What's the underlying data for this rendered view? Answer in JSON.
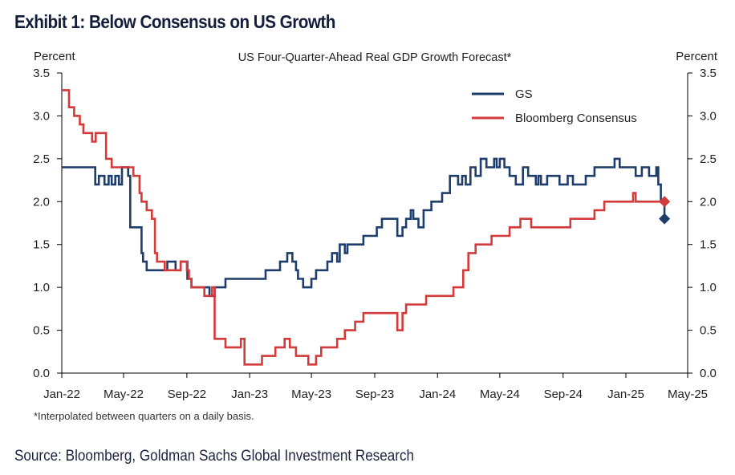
{
  "exhibit_title": "Exhibit 1: Below Consensus on US Growth",
  "footnote": "*Interpolated between quarters on a daily basis.",
  "source": "Source: Bloomberg, Goldman Sachs Global Investment Research",
  "colors": {
    "gs": "#1f3d6b",
    "consensus": "#d43a3a",
    "axis": "#000000",
    "title_text": "#141d3a"
  },
  "chart_data": {
    "type": "line",
    "title": "US Four-Quarter-Ahead Real GDP Growth Forecast*",
    "ylabel_left": "Percent",
    "ylabel_right": "Percent",
    "ylim": [
      0,
      3.5
    ],
    "yticks": [
      "0.0",
      "0.5",
      "1.0",
      "1.5",
      "2.0",
      "2.5",
      "3.0",
      "3.5"
    ],
    "xlim": [
      "2022-01-01",
      "2025-05-01"
    ],
    "xticks": [
      {
        "date": "2022-01-01",
        "label": "Jan-22"
      },
      {
        "date": "2022-05-01",
        "label": "May-22"
      },
      {
        "date": "2022-09-01",
        "label": "Sep-22"
      },
      {
        "date": "2023-01-01",
        "label": "Jan-23"
      },
      {
        "date": "2023-05-01",
        "label": "May-23"
      },
      {
        "date": "2023-09-01",
        "label": "Sep-23"
      },
      {
        "date": "2024-01-01",
        "label": "Jan-24"
      },
      {
        "date": "2024-05-01",
        "label": "May-24"
      },
      {
        "date": "2024-09-01",
        "label": "Sep-24"
      },
      {
        "date": "2025-01-01",
        "label": "Jan-25"
      },
      {
        "date": "2025-05-01",
        "label": "May-25"
      }
    ],
    "legend_position": "top-right",
    "series": [
      {
        "name": "GS",
        "step": true,
        "points": [
          [
            "2022-01-01",
            2.4
          ],
          [
            "2022-03-07",
            2.2
          ],
          [
            "2022-03-14",
            2.3
          ],
          [
            "2022-03-25",
            2.2
          ],
          [
            "2022-04-02",
            2.3
          ],
          [
            "2022-04-08",
            2.2
          ],
          [
            "2022-04-15",
            2.3
          ],
          [
            "2022-04-22",
            2.2
          ],
          [
            "2022-04-28",
            2.4
          ],
          [
            "2022-05-10",
            2.3
          ],
          [
            "2022-05-14",
            1.7
          ],
          [
            "2022-06-05",
            1.4
          ],
          [
            "2022-06-08",
            1.3
          ],
          [
            "2022-06-15",
            1.2
          ],
          [
            "2022-07-25",
            1.3
          ],
          [
            "2022-08-10",
            1.2
          ],
          [
            "2022-08-20",
            1.3
          ],
          [
            "2022-09-02",
            1.1
          ],
          [
            "2022-09-10",
            1.0
          ],
          [
            "2022-10-01",
            1.0
          ],
          [
            "2022-10-15",
            0.9
          ],
          [
            "2022-10-25",
            1.0
          ],
          [
            "2022-11-15",
            1.1
          ],
          [
            "2022-12-15",
            1.1
          ],
          [
            "2023-01-15",
            1.1
          ],
          [
            "2023-02-01",
            1.2
          ],
          [
            "2023-02-20",
            1.2
          ],
          [
            "2023-03-01",
            1.3
          ],
          [
            "2023-03-15",
            1.4
          ],
          [
            "2023-03-25",
            1.3
          ],
          [
            "2023-04-01",
            1.2
          ],
          [
            "2023-04-05",
            1.1
          ],
          [
            "2023-04-15",
            1.0
          ],
          [
            "2023-05-01",
            1.1
          ],
          [
            "2023-05-10",
            1.2
          ],
          [
            "2023-06-01",
            1.3
          ],
          [
            "2023-06-10",
            1.4
          ],
          [
            "2023-06-20",
            1.3
          ],
          [
            "2023-06-25",
            1.5
          ],
          [
            "2023-07-05",
            1.4
          ],
          [
            "2023-07-10",
            1.5
          ],
          [
            "2023-08-01",
            1.5
          ],
          [
            "2023-08-10",
            1.6
          ],
          [
            "2023-08-25",
            1.6
          ],
          [
            "2023-09-05",
            1.7
          ],
          [
            "2023-09-15",
            1.8
          ],
          [
            "2023-10-01",
            1.8
          ],
          [
            "2023-10-15",
            1.6
          ],
          [
            "2023-10-25",
            1.7
          ],
          [
            "2023-11-01",
            1.8
          ],
          [
            "2023-11-10",
            1.9
          ],
          [
            "2023-11-15",
            1.8
          ],
          [
            "2023-11-25",
            1.7
          ],
          [
            "2023-12-05",
            1.9
          ],
          [
            "2023-12-20",
            2.0
          ],
          [
            "2024-01-10",
            2.1
          ],
          [
            "2024-01-25",
            2.3
          ],
          [
            "2024-02-10",
            2.2
          ],
          [
            "2024-02-18",
            2.3
          ],
          [
            "2024-02-25",
            2.2
          ],
          [
            "2024-03-05",
            2.4
          ],
          [
            "2024-03-15",
            2.3
          ],
          [
            "2024-03-25",
            2.5
          ],
          [
            "2024-04-05",
            2.4
          ],
          [
            "2024-04-12",
            2.4
          ],
          [
            "2024-04-20",
            2.5
          ],
          [
            "2024-04-25",
            2.4
          ],
          [
            "2024-05-01",
            2.5
          ],
          [
            "2024-05-10",
            2.4
          ],
          [
            "2024-05-20",
            2.3
          ],
          [
            "2024-06-01",
            2.2
          ],
          [
            "2024-06-15",
            2.4
          ],
          [
            "2024-06-25",
            2.3
          ],
          [
            "2024-07-10",
            2.2
          ],
          [
            "2024-07-15",
            2.3
          ],
          [
            "2024-07-20",
            2.2
          ],
          [
            "2024-08-01",
            2.3
          ],
          [
            "2024-08-15",
            2.3
          ],
          [
            "2024-08-25",
            2.2
          ],
          [
            "2024-09-10",
            2.3
          ],
          [
            "2024-09-20",
            2.2
          ],
          [
            "2024-10-01",
            2.2
          ],
          [
            "2024-10-15",
            2.3
          ],
          [
            "2024-11-01",
            2.4
          ],
          [
            "2024-12-10",
            2.5
          ],
          [
            "2024-12-20",
            2.4
          ],
          [
            "2025-01-10",
            2.4
          ],
          [
            "2025-01-20",
            2.3
          ],
          [
            "2025-02-01",
            2.4
          ],
          [
            "2025-02-15",
            2.3
          ],
          [
            "2025-03-01",
            2.4
          ],
          [
            "2025-03-05",
            2.2
          ],
          [
            "2025-03-10",
            2.0
          ],
          [
            "2025-03-17",
            1.8
          ]
        ],
        "end_marker": {
          "date": "2025-03-17",
          "value": 1.8,
          "shape": "diamond"
        }
      },
      {
        "name": "Bloomberg Consensus",
        "step": true,
        "points": [
          [
            "2022-01-01",
            3.3
          ],
          [
            "2022-01-15",
            3.1
          ],
          [
            "2022-01-25",
            3.0
          ],
          [
            "2022-02-05",
            2.9
          ],
          [
            "2022-02-12",
            2.8
          ],
          [
            "2022-03-01",
            2.7
          ],
          [
            "2022-03-08",
            2.8
          ],
          [
            "2022-03-28",
            2.5
          ],
          [
            "2022-04-08",
            2.4
          ],
          [
            "2022-05-01",
            2.4
          ],
          [
            "2022-05-20",
            2.3
          ],
          [
            "2022-06-01",
            2.1
          ],
          [
            "2022-06-05",
            2.0
          ],
          [
            "2022-06-15",
            1.9
          ],
          [
            "2022-06-25",
            1.8
          ],
          [
            "2022-07-01",
            1.4
          ],
          [
            "2022-07-05",
            1.3
          ],
          [
            "2022-07-20",
            1.2
          ],
          [
            "2022-08-20",
            1.3
          ],
          [
            "2022-09-01",
            1.2
          ],
          [
            "2022-09-05",
            1.1
          ],
          [
            "2022-09-10",
            1.0
          ],
          [
            "2022-10-05",
            0.9
          ],
          [
            "2022-10-20",
            1.0
          ],
          [
            "2022-10-25",
            0.4
          ],
          [
            "2022-11-15",
            0.3
          ],
          [
            "2022-12-01",
            0.3
          ],
          [
            "2022-12-15",
            0.4
          ],
          [
            "2022-12-22",
            0.1
          ],
          [
            "2023-01-10",
            0.1
          ],
          [
            "2023-01-25",
            0.2
          ],
          [
            "2023-02-20",
            0.3
          ],
          [
            "2023-03-10",
            0.4
          ],
          [
            "2023-03-20",
            0.3
          ],
          [
            "2023-04-01",
            0.2
          ],
          [
            "2023-04-15",
            0.2
          ],
          [
            "2023-04-25",
            0.1
          ],
          [
            "2023-05-10",
            0.2
          ],
          [
            "2023-05-20",
            0.3
          ],
          [
            "2023-06-05",
            0.3
          ],
          [
            "2023-06-20",
            0.4
          ],
          [
            "2023-07-05",
            0.5
          ],
          [
            "2023-07-25",
            0.6
          ],
          [
            "2023-08-10",
            0.7
          ],
          [
            "2023-09-05",
            0.7
          ],
          [
            "2023-10-01",
            0.7
          ],
          [
            "2023-10-15",
            0.5
          ],
          [
            "2023-10-25",
            0.7
          ],
          [
            "2023-11-01",
            0.8
          ],
          [
            "2023-11-20",
            0.8
          ],
          [
            "2023-12-10",
            0.9
          ],
          [
            "2024-01-01",
            0.9
          ],
          [
            "2024-01-10",
            0.9
          ],
          [
            "2024-02-01",
            1.0
          ],
          [
            "2024-02-20",
            1.2
          ],
          [
            "2024-03-01",
            1.4
          ],
          [
            "2024-03-15",
            1.5
          ],
          [
            "2024-04-01",
            1.5
          ],
          [
            "2024-04-15",
            1.6
          ],
          [
            "2024-05-01",
            1.6
          ],
          [
            "2024-05-20",
            1.7
          ],
          [
            "2024-06-10",
            1.8
          ],
          [
            "2024-07-01",
            1.7
          ],
          [
            "2024-08-01",
            1.7
          ],
          [
            "2024-09-01",
            1.7
          ],
          [
            "2024-09-15",
            1.8
          ],
          [
            "2024-10-15",
            1.8
          ],
          [
            "2024-11-01",
            1.9
          ],
          [
            "2024-11-20",
            2.0
          ],
          [
            "2024-12-15",
            2.0
          ],
          [
            "2025-01-10",
            2.0
          ],
          [
            "2025-01-15",
            2.1
          ],
          [
            "2025-01-20",
            2.0
          ],
          [
            "2025-02-10",
            2.0
          ],
          [
            "2025-03-17",
            2.0
          ]
        ],
        "end_marker": {
          "date": "2025-03-17",
          "value": 2.0,
          "shape": "diamond"
        }
      }
    ]
  }
}
